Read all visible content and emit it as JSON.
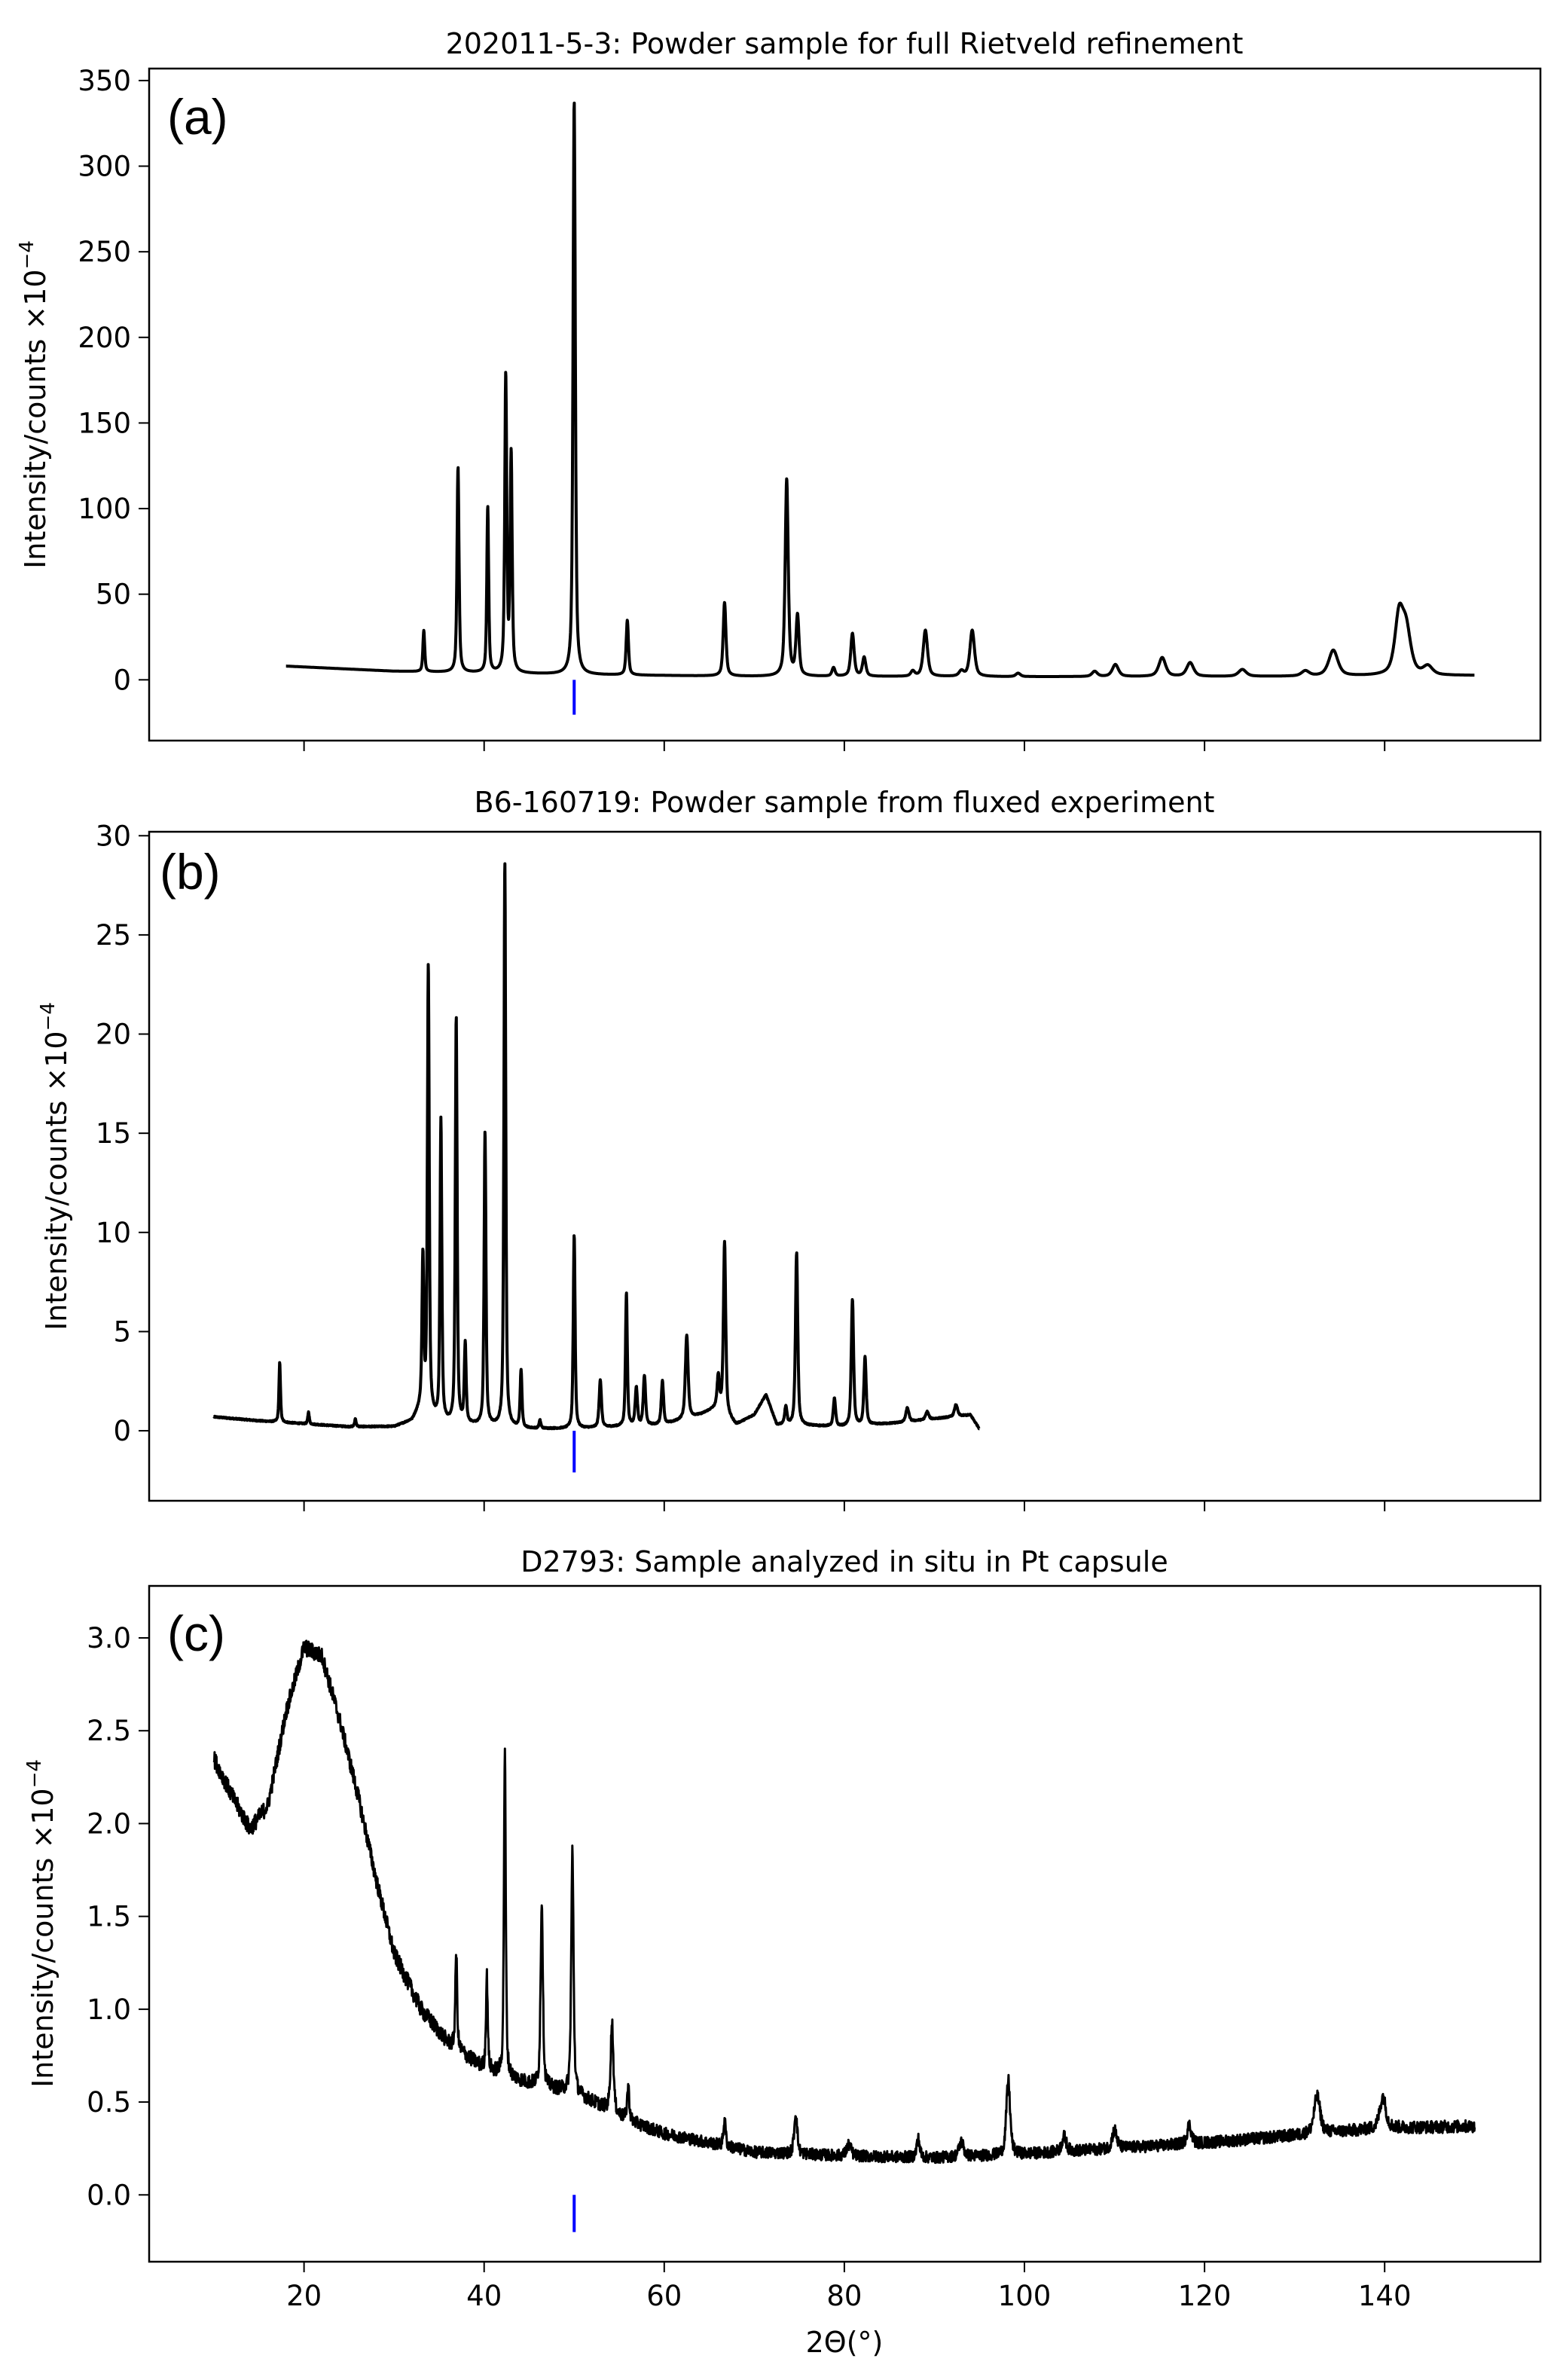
{
  "chart_data": [
    {
      "type": "line",
      "panel_label": "(a)",
      "title": "202011-5-3: Powder sample for full Rietveld refinement",
      "xlabel": "",
      "ylabel_main": "Intensity/counts ×10",
      "ylabel_exp": "−4",
      "xlim": [
        2.8,
        157.3
      ],
      "ylim": [
        -35.5,
        357
      ],
      "xticks": [
        20,
        40,
        60,
        80,
        100,
        120,
        140
      ],
      "show_xtick_labels": false,
      "yticks": [
        0,
        50,
        100,
        150,
        200,
        250,
        300,
        350
      ],
      "ytick_labels": [
        "0",
        "50",
        "100",
        "150",
        "200",
        "250",
        "300",
        "350"
      ],
      "x_range": [
        18,
        150
      ],
      "background": [
        [
          18,
          8
        ],
        [
          30,
          5
        ],
        [
          40,
          4
        ],
        [
          50,
          3
        ],
        [
          70,
          2
        ],
        [
          100,
          1.8
        ],
        [
          130,
          2
        ],
        [
          150,
          2.5
        ]
      ],
      "peaks": [
        [
          33.3,
          24,
          0.12
        ],
        [
          37.1,
          120,
          0.13
        ],
        [
          40.4,
          97,
          0.12
        ],
        [
          42.4,
          173,
          0.13
        ],
        [
          43.0,
          127,
          0.13
        ],
        [
          50.0,
          335,
          0.15
        ],
        [
          55.9,
          32,
          0.15
        ],
        [
          66.7,
          43,
          0.18
        ],
        [
          73.6,
          115,
          0.2
        ],
        [
          74.8,
          35,
          0.2
        ],
        [
          78.8,
          5,
          0.2
        ],
        [
          80.9,
          25,
          0.22
        ],
        [
          82.2,
          11,
          0.22
        ],
        [
          87.6,
          3,
          0.25
        ],
        [
          89.0,
          27,
          0.28
        ],
        [
          93.0,
          3,
          0.3
        ],
        [
          94.2,
          27,
          0.3
        ],
        [
          99.3,
          2,
          0.3
        ],
        [
          107.8,
          3,
          0.35
        ],
        [
          110.1,
          7,
          0.4
        ],
        [
          115.3,
          11,
          0.45
        ],
        [
          118.4,
          8,
          0.45
        ],
        [
          124.2,
          4,
          0.5
        ],
        [
          131.2,
          3,
          0.5
        ],
        [
          134.3,
          15,
          0.6
        ],
        [
          141.6,
          33,
          0.55
        ],
        [
          142.4,
          25,
          0.6
        ],
        [
          144.8,
          5,
          0.6
        ]
      ],
      "noise": 0,
      "series_color": "#000000",
      "marker": {
        "x": 50,
        "y_range": [
          -20.4,
          0
        ],
        "color": "#0000ff"
      }
    },
    {
      "type": "line",
      "panel_label": "(b)",
      "title": "B6-160719: Powder sample from fluxed experiment",
      "xlabel": "",
      "ylabel_main": "Intensity/counts ×10",
      "ylabel_exp": "−4",
      "xlim": [
        2.8,
        157.3
      ],
      "ylim": [
        -3.53,
        30.2
      ],
      "xticks": [
        20,
        40,
        60,
        80,
        100,
        120,
        140
      ],
      "show_xtick_labels": false,
      "yticks": [
        0,
        5,
        10,
        15,
        20,
        25,
        30
      ],
      "ytick_labels": [
        "0",
        "5",
        "10",
        "15",
        "20",
        "25",
        "30"
      ],
      "x_range": [
        10,
        95
      ],
      "background": [
        [
          10,
          0.7
        ],
        [
          15,
          0.5
        ],
        [
          25,
          0.2
        ],
        [
          30,
          0.2
        ],
        [
          32,
          0.5
        ],
        [
          33,
          1.2
        ],
        [
          35,
          0.4
        ],
        [
          45,
          0.1
        ],
        [
          50,
          0.1
        ],
        [
          60,
          0.3
        ],
        [
          64,
          0.8
        ],
        [
          66,
          1.2
        ],
        [
          68,
          0.3
        ],
        [
          70,
          0.8
        ],
        [
          71.3,
          1.8
        ],
        [
          72.5,
          0.3
        ],
        [
          80,
          0.2
        ],
        [
          86,
          0.4
        ],
        [
          90,
          0.6
        ],
        [
          94,
          0.8
        ],
        [
          95,
          0.1
        ]
      ],
      "peaks": [
        [
          17.3,
          3.0,
          0.1
        ],
        [
          20.5,
          0.6,
          0.1
        ],
        [
          25.7,
          0.4,
          0.1
        ],
        [
          33.2,
          7.5,
          0.12
        ],
        [
          33.8,
          22.5,
          0.12
        ],
        [
          35.2,
          15.2,
          0.12
        ],
        [
          36.9,
          20.5,
          0.12
        ],
        [
          37.9,
          4.0,
          0.12
        ],
        [
          40.1,
          14.8,
          0.12
        ],
        [
          42.3,
          28.5,
          0.12
        ],
        [
          44.1,
          2.9,
          0.12
        ],
        [
          46.2,
          0.4,
          0.12
        ],
        [
          50.0,
          9.8,
          0.12
        ],
        [
          52.9,
          2.4,
          0.15
        ],
        [
          55.8,
          6.7,
          0.12
        ],
        [
          56.9,
          1.9,
          0.15
        ],
        [
          57.8,
          2.5,
          0.15
        ],
        [
          59.8,
          2.2,
          0.15
        ],
        [
          62.5,
          4.2,
          0.18
        ],
        [
          66.0,
          1.5,
          0.15
        ],
        [
          66.7,
          8.6,
          0.15
        ],
        [
          73.5,
          0.9,
          0.15
        ],
        [
          74.7,
          8.7,
          0.15
        ],
        [
          78.9,
          1.4,
          0.15
        ],
        [
          80.9,
          6.4,
          0.15
        ],
        [
          82.3,
          3.4,
          0.15
        ],
        [
          87.0,
          0.7,
          0.2
        ],
        [
          89.2,
          0.4,
          0.2
        ],
        [
          92.4,
          0.6,
          0.2
        ]
      ],
      "noise": 0.03,
      "series_color": "#000000",
      "marker": {
        "x": 50,
        "y_range": [
          -2.1,
          0
        ],
        "color": "#0000ff"
      }
    },
    {
      "type": "line",
      "panel_label": "(c)",
      "title": "D2793: Sample analyzed in situ in Pt capsule",
      "xlabel": "2Θ(°)",
      "ylabel_main": "Intensity/counts ×10",
      "ylabel_exp": "−4",
      "xlim": [
        2.8,
        157.3
      ],
      "ylim": [
        -0.36,
        3.28
      ],
      "xticks": [
        20,
        40,
        60,
        80,
        100,
        120,
        140
      ],
      "xtick_labels": [
        "20",
        "40",
        "60",
        "80",
        "100",
        "120",
        "140"
      ],
      "show_xtick_labels": true,
      "yticks": [
        0,
        0.5,
        1.0,
        1.5,
        2.0,
        2.5,
        3.0
      ],
      "ytick_labels": [
        "0.0",
        "0.5",
        "1.0",
        "1.5",
        "2.0",
        "2.5",
        "3.0"
      ],
      "x_range": [
        10,
        150
      ],
      "background": [
        [
          10,
          2.35
        ],
        [
          12,
          2.15
        ],
        [
          14,
          1.97
        ],
        [
          16,
          2.1
        ],
        [
          18,
          2.6
        ],
        [
          20,
          2.95
        ],
        [
          22,
          2.9
        ],
        [
          24,
          2.55
        ],
        [
          26,
          2.15
        ],
        [
          28,
          1.7
        ],
        [
          30,
          1.3
        ],
        [
          33,
          1.0
        ],
        [
          36,
          0.82
        ],
        [
          40,
          0.68
        ],
        [
          45,
          0.6
        ],
        [
          50,
          0.55
        ],
        [
          53,
          0.48
        ],
        [
          56,
          0.4
        ],
        [
          60,
          0.33
        ],
        [
          65,
          0.28
        ],
        [
          70,
          0.23
        ],
        [
          80,
          0.21
        ],
        [
          90,
          0.2
        ],
        [
          100,
          0.22
        ],
        [
          110,
          0.25
        ],
        [
          120,
          0.28
        ],
        [
          130,
          0.32
        ],
        [
          140,
          0.36
        ],
        [
          150,
          0.37
        ]
      ],
      "peaks": [
        [
          36.9,
          0.52,
          0.12
        ],
        [
          40.3,
          0.5,
          0.12
        ],
        [
          42.3,
          1.75,
          0.12
        ],
        [
          46.4,
          1.0,
          0.15
        ],
        [
          49.8,
          1.3,
          0.15
        ],
        [
          54.2,
          0.48,
          0.18
        ],
        [
          56.0,
          0.18,
          0.15
        ],
        [
          66.7,
          0.14,
          0.15
        ],
        [
          74.6,
          0.22,
          0.2
        ],
        [
          80.5,
          0.06,
          0.3
        ],
        [
          88.2,
          0.1,
          0.2
        ],
        [
          93.0,
          0.08,
          0.3
        ],
        [
          98.2,
          0.4,
          0.25
        ],
        [
          104.4,
          0.08,
          0.3
        ],
        [
          110.0,
          0.1,
          0.3
        ],
        [
          118.3,
          0.1,
          0.3
        ],
        [
          132.5,
          0.2,
          0.4
        ],
        [
          139.8,
          0.17,
          0.4
        ]
      ],
      "noise": 0.045,
      "series_color": "#000000",
      "marker": {
        "x": 50,
        "y_range": [
          -0.2,
          0
        ],
        "color": "#0000ff"
      }
    }
  ]
}
